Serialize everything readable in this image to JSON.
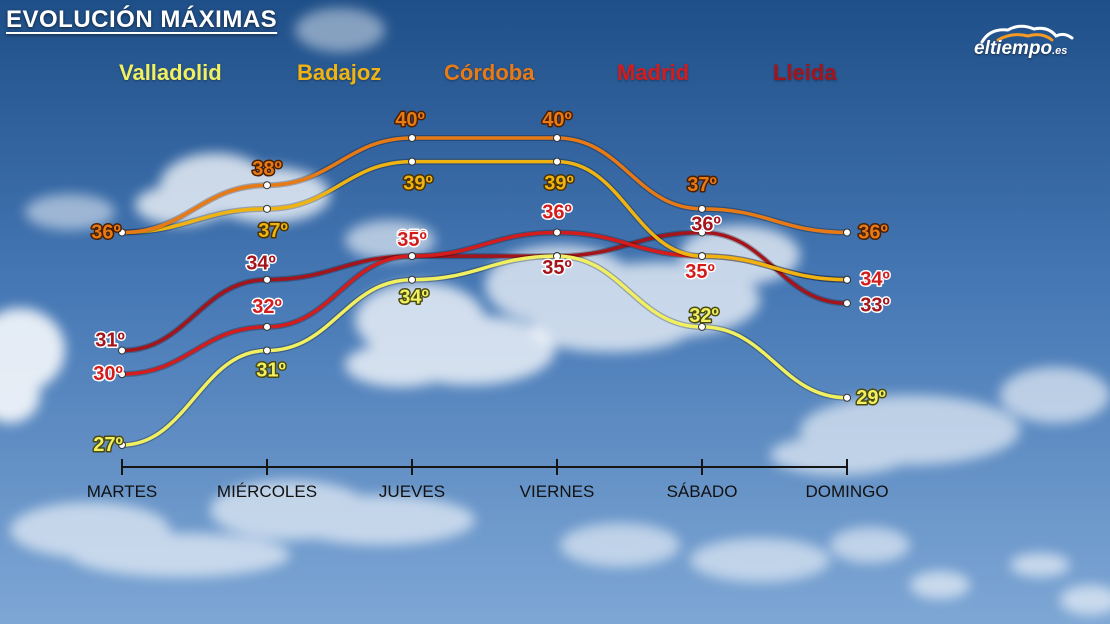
{
  "header": {
    "title": "EVOLUCIÓN MÁXIMAS"
  },
  "brand": {
    "name": "eltiempo",
    "tld": ".es"
  },
  "chart_data": {
    "type": "line",
    "title": "EVOLUCIÓN MÁXIMAS",
    "xlabel": "",
    "ylabel": "",
    "categories": [
      "MARTES",
      "MIÉRCOLES",
      "JUEVES",
      "VIERNES",
      "SÁBADO",
      "DOMINGO"
    ],
    "unit": "º",
    "ylim": [
      26,
      41
    ],
    "grid": false,
    "legend": "top",
    "series": [
      {
        "name": "Valladolid",
        "color": "#f1f060",
        "values": [
          27,
          31,
          34,
          35,
          32,
          29
        ]
      },
      {
        "name": "Badajoz",
        "color": "#f0b412",
        "values": [
          36,
          37,
          39,
          39,
          35,
          34
        ]
      },
      {
        "name": "Córdoba",
        "color": "#e87a16",
        "values": [
          36,
          38,
          40,
          40,
          37,
          36
        ]
      },
      {
        "name": "Madrid",
        "color": "#d41c1c",
        "values": [
          30,
          32,
          35,
          36,
          35,
          34
        ]
      },
      {
        "name": "Lleida",
        "color": "#a3141b",
        "values": [
          31,
          34,
          35,
          35,
          36,
          33
        ]
      }
    ]
  }
}
